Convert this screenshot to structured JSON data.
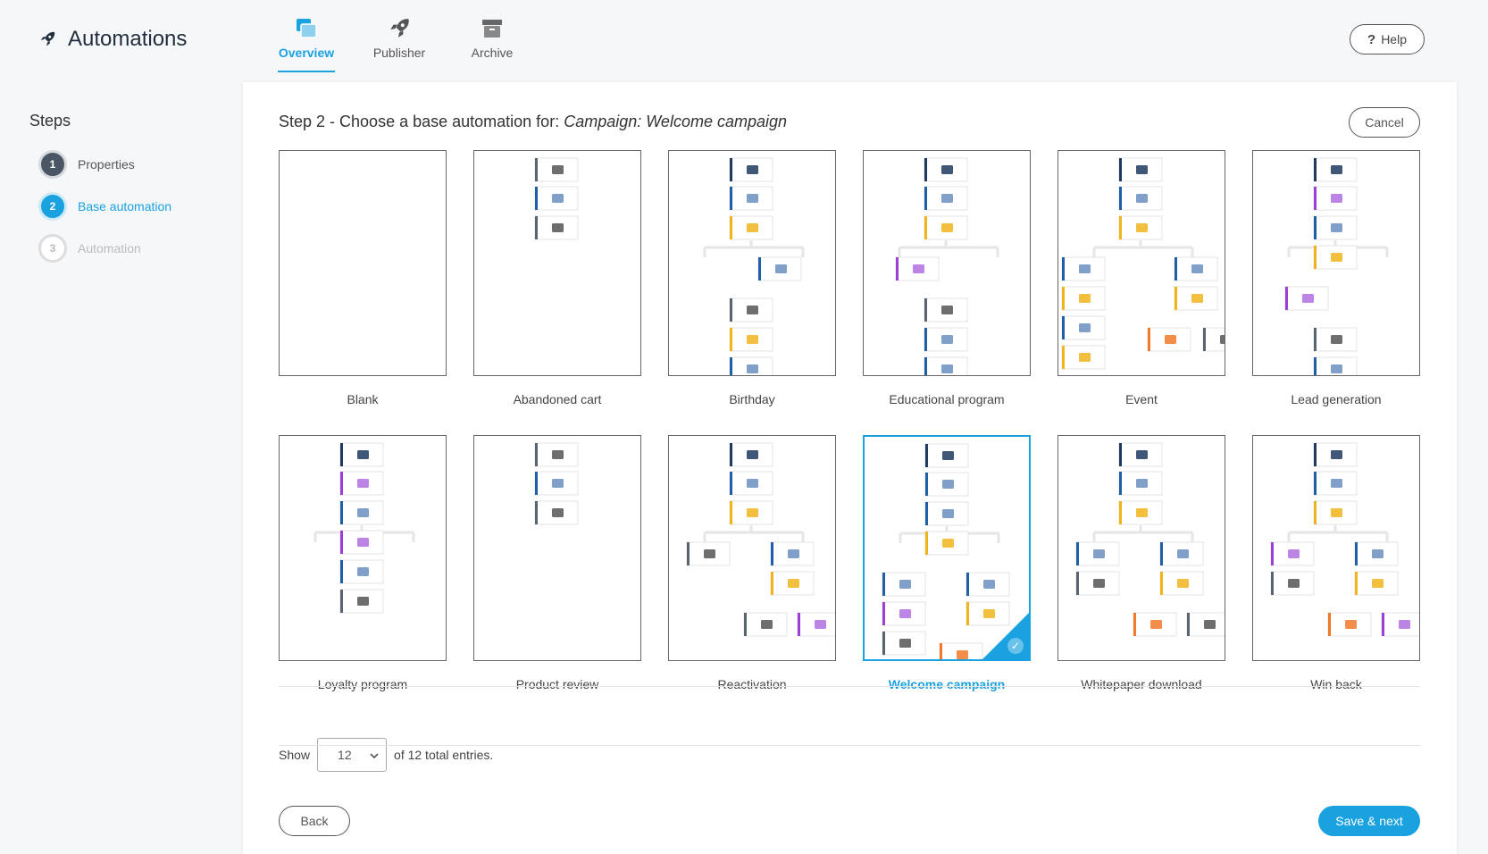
{
  "app": {
    "title": "Automations",
    "logo_icon": "rocket-icon"
  },
  "nav": {
    "tabs": [
      {
        "label": "Overview",
        "icon": "overview-icon",
        "active": true
      },
      {
        "label": "Publisher",
        "icon": "rocket-icon",
        "active": false
      },
      {
        "label": "Archive",
        "icon": "archive-box-icon",
        "active": false
      }
    ]
  },
  "header": {
    "help_label": "Help",
    "help_icon": "question-icon"
  },
  "sidebar": {
    "title": "Steps",
    "steps": [
      {
        "number": "1",
        "label": "Properties",
        "state": "done"
      },
      {
        "number": "2",
        "label": "Base automation",
        "state": "current"
      },
      {
        "number": "3",
        "label": "Automation",
        "state": "todo"
      }
    ]
  },
  "main": {
    "heading_prefix": "Step 2 - Choose a base automation for:",
    "heading_campaign": "Campaign: Welcome campaign",
    "cancel_label": "Cancel",
    "templates": [
      {
        "name": "Blank",
        "selected": false
      },
      {
        "name": "Abandoned cart",
        "selected": false
      },
      {
        "name": "Birthday",
        "selected": false
      },
      {
        "name": "Educational program",
        "selected": false
      },
      {
        "name": "Event",
        "selected": false
      },
      {
        "name": "Lead generation",
        "selected": false
      },
      {
        "name": "Loyalty program",
        "selected": false
      },
      {
        "name": "Product review",
        "selected": false
      },
      {
        "name": "Reactivation",
        "selected": false
      },
      {
        "name": "Welcome campaign",
        "selected": true
      },
      {
        "name": "Whitepaper download",
        "selected": false
      },
      {
        "name": "Win back",
        "selected": false
      }
    ],
    "pager": {
      "show_label": "Show",
      "page_size": "12",
      "total_text": "of 12 total entries."
    },
    "back_label": "Back",
    "save_label": "Save & next"
  },
  "colors": {
    "accent": "#1aa1e0",
    "node_navy": "#1f3a5f",
    "node_blue": "#1f5fa8",
    "node_yellow": "#f0b41c",
    "node_purple": "#9b3fd6",
    "node_gray": "#5a6470",
    "node_orange": "#f07a2a"
  }
}
